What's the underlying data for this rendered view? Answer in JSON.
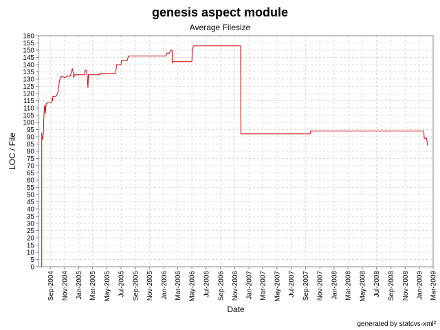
{
  "chart_data": {
    "type": "line",
    "title": "genesis aspect module",
    "subtitle": "Average Filesize",
    "xlabel": "Date",
    "ylabel": "LOC / File",
    "footer": "generated by statcvs-xml²",
    "ylim": [
      0,
      160
    ],
    "yticks": [
      0,
      5,
      10,
      15,
      20,
      25,
      30,
      35,
      40,
      45,
      50,
      55,
      60,
      65,
      70,
      75,
      80,
      85,
      90,
      95,
      100,
      105,
      110,
      115,
      120,
      125,
      130,
      135,
      140,
      145,
      150,
      155,
      160
    ],
    "xlim": [
      "2004-07-12",
      "2009-03-01"
    ],
    "xticks": [
      "Sep-2004",
      "Nov-2004",
      "Jan-2005",
      "Mar-2005",
      "May-2005",
      "Jul-2005",
      "Sep-2005",
      "Nov-2005",
      "Jan-2006",
      "Mar-2006",
      "May-2006",
      "Jul-2006",
      "Sep-2006",
      "Nov-2006",
      "Jan-2007",
      "Mar-2007",
      "May-2007",
      "Jul-2007",
      "Sep-2007",
      "Nov-2007",
      "Jan-2008",
      "Mar-2008",
      "May-2008",
      "Jul-2008",
      "Sep-2008",
      "Nov-2008",
      "Jan-2009",
      "Mar-2009"
    ],
    "xtick_dates": [
      "2004-09-01",
      "2004-11-01",
      "2005-01-01",
      "2005-03-01",
      "2005-05-01",
      "2005-07-01",
      "2005-09-01",
      "2005-11-01",
      "2006-01-01",
      "2006-03-01",
      "2006-05-01",
      "2006-07-01",
      "2006-09-01",
      "2006-11-01",
      "2007-01-01",
      "2007-03-01",
      "2007-05-01",
      "2007-07-01",
      "2007-09-01",
      "2007-11-01",
      "2008-01-01",
      "2008-03-01",
      "2008-05-01",
      "2008-07-01",
      "2008-09-01",
      "2008-11-01",
      "2009-01-01",
      "2009-03-01"
    ],
    "grid": true,
    "series": [
      {
        "name": "",
        "color": "#cc0000",
        "points": [
          [
            "2004-07-26",
            0
          ],
          [
            "2004-07-26",
            93
          ],
          [
            "2004-07-28",
            88
          ],
          [
            "2004-07-31",
            90
          ],
          [
            "2004-08-02",
            92
          ],
          [
            "2004-08-04",
            103
          ],
          [
            "2004-08-06",
            110
          ],
          [
            "2004-08-08",
            112
          ],
          [
            "2004-08-10",
            106
          ],
          [
            "2004-08-14",
            113
          ],
          [
            "2004-08-25",
            114
          ],
          [
            "2004-09-08",
            114
          ],
          [
            "2004-09-08",
            117
          ],
          [
            "2004-09-10",
            115
          ],
          [
            "2004-09-12",
            118
          ],
          [
            "2004-09-25",
            118
          ],
          [
            "2004-10-02",
            120
          ],
          [
            "2004-10-05",
            122
          ],
          [
            "2004-10-09",
            128
          ],
          [
            "2004-10-14",
            131
          ],
          [
            "2004-10-20",
            132
          ],
          [
            "2004-11-02",
            131
          ],
          [
            "2004-11-10",
            132
          ],
          [
            "2004-11-25",
            132
          ],
          [
            "2004-12-01",
            135
          ],
          [
            "2004-12-04",
            137
          ],
          [
            "2004-12-08",
            135
          ],
          [
            "2004-12-10",
            131
          ],
          [
            "2004-12-14",
            133
          ],
          [
            "2005-01-05",
            133
          ],
          [
            "2005-01-05",
            133
          ],
          [
            "2005-01-25",
            133
          ],
          [
            "2005-01-28",
            136
          ],
          [
            "2005-02-02",
            136
          ],
          [
            "2005-02-06",
            132
          ],
          [
            "2005-02-09",
            124
          ],
          [
            "2005-02-11",
            133
          ],
          [
            "2005-04-01",
            133
          ],
          [
            "2005-04-01",
            134
          ],
          [
            "2005-06-08",
            134
          ],
          [
            "2005-06-12",
            140
          ],
          [
            "2005-07-01",
            140
          ],
          [
            "2005-07-03",
            143
          ],
          [
            "2005-07-28",
            143
          ],
          [
            "2005-08-02",
            146
          ],
          [
            "2006-01-10",
            146
          ],
          [
            "2006-01-14",
            148
          ],
          [
            "2006-01-25",
            148
          ],
          [
            "2006-01-29",
            150
          ],
          [
            "2006-02-05",
            150
          ],
          [
            "2006-02-07",
            141
          ],
          [
            "2006-02-09",
            142
          ],
          [
            "2006-05-01",
            142
          ],
          [
            "2006-05-03",
            151
          ],
          [
            "2006-05-08",
            153
          ],
          [
            "2006-11-26",
            153
          ],
          [
            "2006-11-27",
            92
          ],
          [
            "2007-09-20",
            92
          ],
          [
            "2007-09-22",
            94
          ],
          [
            "2009-01-20",
            94
          ],
          [
            "2009-01-22",
            89
          ],
          [
            "2009-02-01",
            89
          ],
          [
            "2009-02-05",
            84
          ]
        ]
      }
    ]
  }
}
